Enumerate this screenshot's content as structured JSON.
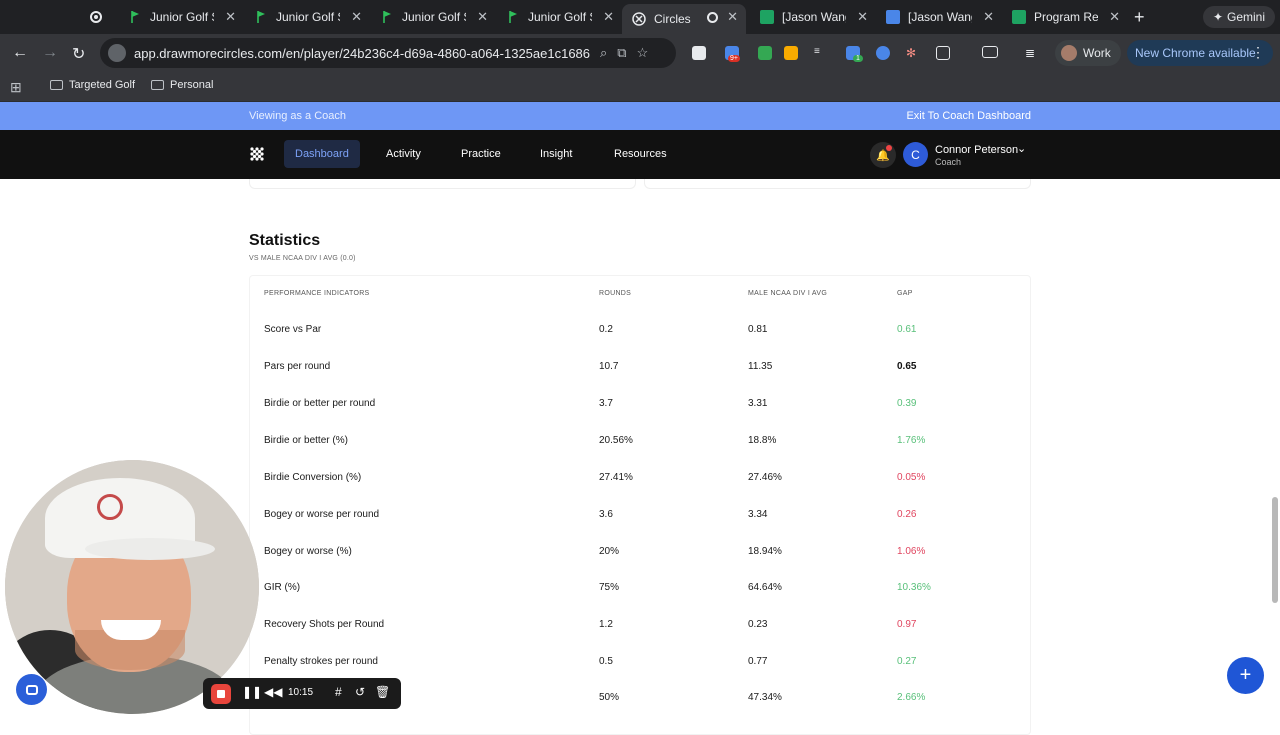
{
  "browser": {
    "tabs": [
      {
        "title": "Junior Golf Sc",
        "active": false
      },
      {
        "title": "Junior Golf Sc",
        "active": false
      },
      {
        "title": "Junior Golf Sc",
        "active": false
      },
      {
        "title": "Junior Golf Sc",
        "active": false
      },
      {
        "title": "Circles",
        "active": true
      },
      {
        "title": "[Jason Wang]",
        "active": false
      },
      {
        "title": "[Jason Wang]",
        "active": false
      },
      {
        "title": "Program Resu",
        "active": false
      }
    ],
    "gemini_label": "Gemini",
    "url": "app.drawmorecircles.com/en/player/24b236c4-d69a-4860-a064-1325ae1c1686",
    "profile_label": "Work",
    "update_label": "New Chrome available",
    "extension_badge_1": "9+",
    "extension_badge_2": "1",
    "bookmarks": [
      "Targeted Golf",
      "Personal"
    ]
  },
  "banner": {
    "viewing_as": "Viewing as a Coach",
    "exit_label": "Exit To Coach Dashboard"
  },
  "nav": {
    "items": [
      "Dashboard",
      "Activity",
      "Practice",
      "Insight",
      "Resources"
    ],
    "active": "Dashboard",
    "user_initial": "C",
    "user_name": "Connor Peterson",
    "user_role": "Coach"
  },
  "statistics": {
    "title": "Statistics",
    "subtitle": "VS MALE NCAA DIV I AVG (0.0)",
    "headers": [
      "PERFORMANCE INDICATORS",
      "ROUNDS",
      "MALE NCAA DIV I AVG",
      "GAP"
    ],
    "rows": [
      {
        "indicator": "Score vs Par",
        "rounds": "0.2",
        "avg": "0.81",
        "gap": "0.61",
        "status": "good"
      },
      {
        "indicator": "Pars per round",
        "rounds": "10.7",
        "avg": "11.35",
        "gap": "0.65",
        "status": "neutral"
      },
      {
        "indicator": "Birdie or better per round",
        "rounds": "3.7",
        "avg": "3.31",
        "gap": "0.39",
        "status": "good"
      },
      {
        "indicator": "Birdie or better (%)",
        "rounds": "20.56%",
        "avg": "18.8%",
        "gap": "1.76%",
        "status": "good"
      },
      {
        "indicator": "Birdie Conversion (%)",
        "rounds": "27.41%",
        "avg": "27.46%",
        "gap": "0.05%",
        "status": "bad"
      },
      {
        "indicator": "Bogey or worse per round",
        "rounds": "3.6",
        "avg": "3.34",
        "gap": "0.26",
        "status": "bad"
      },
      {
        "indicator": "Bogey or worse (%)",
        "rounds": "20%",
        "avg": "18.94%",
        "gap": "1.06%",
        "status": "bad"
      },
      {
        "indicator": "GIR (%)",
        "rounds": "75%",
        "avg": "64.64%",
        "gap": "10.36%",
        "status": "good"
      },
      {
        "indicator": "Recovery Shots per Round",
        "rounds": "1.2",
        "avg": "0.23",
        "gap": "0.97",
        "status": "bad"
      },
      {
        "indicator": "Penalty strokes per round",
        "rounds": "0.5",
        "avg": "0.77",
        "gap": "0.27",
        "status": "good"
      },
      {
        "indicator": "",
        "rounds": "50%",
        "avg": "47.34%",
        "gap": "2.66%",
        "status": "good"
      }
    ]
  },
  "recorder": {
    "time": "10:15"
  },
  "colors": {
    "banner": "#6e97f5",
    "gap_good": "#59c07a",
    "gap_bad": "#e0455f",
    "fab": "#1f56d6"
  }
}
